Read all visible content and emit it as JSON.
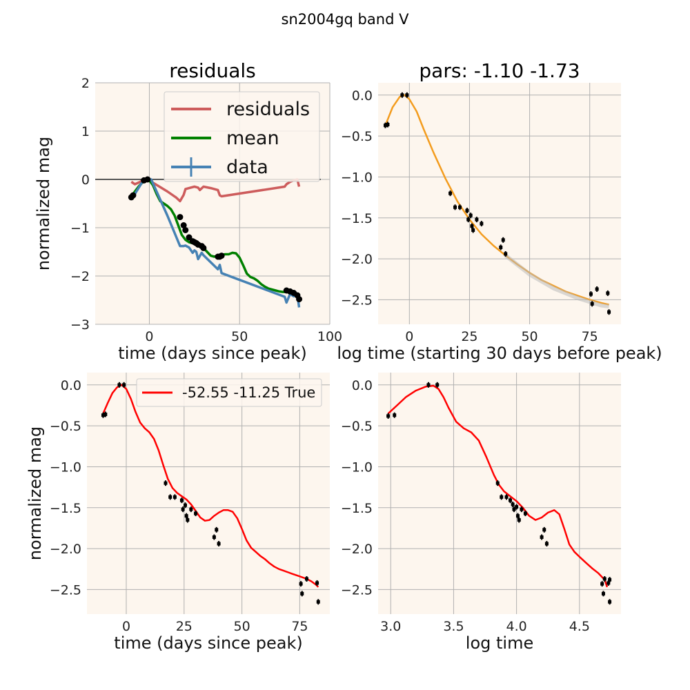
{
  "figure": {
    "title": "sn2004gq band V"
  },
  "chart_data": [
    {
      "id": "residuals",
      "type": "line",
      "title": "residuals",
      "xlabel": "time (days since peak)",
      "ylabel": "normalized mag",
      "xlim": [
        -30,
        100
      ],
      "ylim": [
        -3,
        2
      ],
      "xticks": [
        0,
        50,
        100
      ],
      "yticks": [
        2,
        1,
        0,
        -1,
        -2,
        -3
      ],
      "grid": true,
      "legend": {
        "position": "top-right",
        "entries": [
          "residuals",
          "mean",
          "data"
        ]
      },
      "series": [
        {
          "name": "residuals",
          "color": "#cd5c5c",
          "x": [
            -10,
            -8,
            -5,
            -3,
            -1,
            10,
            15,
            17,
            19,
            20,
            22,
            25,
            27,
            28,
            30,
            34,
            38,
            39,
            40,
            75,
            76,
            78,
            80,
            82,
            83
          ],
          "y": [
            -0.05,
            -0.1,
            -0.05,
            0,
            0,
            -0.25,
            -0.38,
            -0.45,
            -0.32,
            -0.2,
            -0.18,
            -0.15,
            -0.17,
            -0.22,
            -0.15,
            -0.18,
            -0.22,
            -0.33,
            -0.35,
            -0.15,
            -0.1,
            -0.05,
            -0.02,
            0,
            -0.15
          ]
        },
        {
          "name": "mean",
          "color": "#008000",
          "x": [
            -10,
            -8,
            -6,
            -4,
            -2,
            0,
            2,
            4,
            6,
            8,
            10,
            12,
            14,
            16,
            18,
            20,
            22,
            24,
            26,
            28,
            30,
            32,
            34,
            36,
            38,
            40,
            42,
            44,
            46,
            48,
            50,
            52,
            54,
            56,
            58,
            60,
            62,
            64,
            66,
            68,
            70,
            72,
            74,
            76,
            78,
            80,
            82,
            83
          ],
          "y": [
            -0.35,
            -0.25,
            -0.15,
            -0.07,
            -0.02,
            -0.02,
            -0.12,
            -0.3,
            -0.45,
            -0.5,
            -0.55,
            -0.62,
            -0.75,
            -0.95,
            -1.15,
            -1.25,
            -1.3,
            -1.32,
            -1.35,
            -1.38,
            -1.42,
            -1.5,
            -1.58,
            -1.6,
            -1.58,
            -1.56,
            -1.55,
            -1.55,
            -1.52,
            -1.53,
            -1.62,
            -1.78,
            -1.95,
            -2.02,
            -2.05,
            -2.1,
            -2.17,
            -2.22,
            -2.26,
            -2.28,
            -2.3,
            -2.32,
            -2.33,
            -2.33,
            -2.35,
            -2.38,
            -2.43,
            -2.48
          ]
        },
        {
          "name": "data",
          "color": "#4682b4",
          "x": [
            -10,
            -9,
            -3,
            -1,
            1,
            10,
            15,
            17,
            19,
            20,
            22,
            24,
            25,
            26,
            27,
            29,
            30,
            38,
            39,
            40,
            75,
            76,
            78,
            80,
            82,
            83
          ],
          "y": [
            -0.37,
            -0.36,
            0,
            0,
            0,
            -0.75,
            -1.2,
            -1.38,
            -1.38,
            -1.37,
            -1.41,
            -1.52,
            -1.47,
            -1.5,
            -1.65,
            -1.52,
            -1.57,
            -1.86,
            -1.77,
            -1.94,
            -2.43,
            -2.55,
            -2.37,
            -2.42,
            -2.38,
            -2.65
          ]
        },
        {
          "name": "",
          "color": "#000000",
          "type": "scatter",
          "x": [
            -10,
            -9,
            -3,
            -1,
            17,
            19,
            20,
            22,
            24,
            25,
            26,
            27,
            29,
            30,
            38,
            39,
            40,
            76,
            78,
            80,
            82,
            83
          ],
          "y": [
            -0.37,
            -0.33,
            -0.02,
            0,
            -0.78,
            -0.95,
            -1.05,
            -1.2,
            -1.28,
            -1.3,
            -1.32,
            -1.35,
            -1.38,
            -1.42,
            -1.6,
            -1.6,
            -1.58,
            -2.3,
            -2.32,
            -2.35,
            -2.4,
            -2.48
          ]
        }
      ],
      "hline": {
        "y": 0,
        "color": "#555555"
      }
    },
    {
      "id": "pars",
      "type": "line",
      "title": "pars: -1.10 -1.73",
      "xlabel": "log time (starting 30 days before peak)",
      "ylabel": "",
      "xlim": [
        -13,
        88
      ],
      "ylim": [
        -2.8,
        0.15
      ],
      "xticks": [
        0,
        25,
        50,
        75
      ],
      "yticks": [
        0.0,
        -0.5,
        -1.0,
        -1.5,
        -2.0,
        -2.5
      ],
      "grid": true,
      "series": [
        {
          "name": "",
          "color": "#f39c1e",
          "x": [
            -10,
            -7,
            -4,
            -2,
            0,
            3,
            6,
            10,
            15,
            20,
            25,
            30,
            35,
            40,
            45,
            50,
            55,
            60,
            65,
            70,
            75,
            80,
            83
          ],
          "y": [
            -0.37,
            -0.15,
            -0.02,
            0,
            -0.05,
            -0.2,
            -0.42,
            -0.7,
            -1.02,
            -1.3,
            -1.52,
            -1.7,
            -1.84,
            -1.96,
            -2.07,
            -2.17,
            -2.26,
            -2.33,
            -2.4,
            -2.45,
            -2.5,
            -2.54,
            -2.56
          ]
        },
        {
          "name": "",
          "color": "#bbbbbb",
          "x": [
            40,
            50,
            60,
            70,
            80,
            83
          ],
          "y": [
            -1.96,
            -2.19,
            -2.36,
            -2.48,
            -2.57,
            -2.58
          ]
        },
        {
          "name": "",
          "color": "#000000",
          "type": "scatter",
          "x": [
            -10,
            -9,
            -3,
            -1,
            17,
            19,
            21,
            24,
            24.5,
            25.5,
            26,
            26.5,
            28,
            30,
            38,
            39,
            40,
            75.5,
            76,
            78,
            82.5,
            83
          ],
          "y": [
            -0.37,
            -0.36,
            0,
            0,
            -1.2,
            -1.37,
            -1.37,
            -1.41,
            -1.52,
            -1.47,
            -1.6,
            -1.65,
            -1.52,
            -1.57,
            -1.86,
            -1.77,
            -1.94,
            -2.43,
            -2.55,
            -2.37,
            -2.42,
            -2.65
          ]
        }
      ]
    },
    {
      "id": "fit-time",
      "type": "line",
      "title": "",
      "xlabel": "time (days since peak)",
      "ylabel": "normalized mag",
      "xlim": [
        -17,
        88
      ],
      "ylim": [
        -2.8,
        0.15
      ],
      "xticks": [
        0,
        25,
        50,
        75
      ],
      "yticks": [
        0.0,
        -0.5,
        -1.0,
        -1.5,
        -2.0,
        -2.5
      ],
      "grid": true,
      "legend": {
        "position": "top-right",
        "entries": [
          "-52.55 -11.25 True"
        ]
      },
      "series": [
        {
          "name": "-52.55 -11.25 True",
          "color": "#ff0000",
          "x": [
            -10,
            -8,
            -6,
            -4,
            -2,
            0,
            2,
            4,
            6,
            8,
            10,
            12,
            14,
            16,
            18,
            20,
            22,
            24,
            26,
            28,
            30,
            32,
            34,
            36,
            38,
            40,
            42,
            44,
            46,
            48,
            50,
            52,
            54,
            56,
            58,
            60,
            62,
            64,
            66,
            68,
            70,
            72,
            74,
            76,
            78,
            80,
            82,
            83
          ],
          "y": [
            -0.35,
            -0.22,
            -0.1,
            -0.03,
            0,
            -0.05,
            -0.17,
            -0.33,
            -0.46,
            -0.53,
            -0.58,
            -0.66,
            -0.8,
            -0.98,
            -1.15,
            -1.26,
            -1.32,
            -1.36,
            -1.4,
            -1.46,
            -1.54,
            -1.62,
            -1.66,
            -1.65,
            -1.6,
            -1.56,
            -1.53,
            -1.53,
            -1.55,
            -1.63,
            -1.76,
            -1.9,
            -1.99,
            -2.04,
            -2.09,
            -2.13,
            -2.18,
            -2.22,
            -2.25,
            -2.27,
            -2.29,
            -2.31,
            -2.33,
            -2.35,
            -2.37,
            -2.4,
            -2.44,
            -2.47
          ]
        },
        {
          "name": "",
          "color": "#000000",
          "type": "scatter",
          "x": [
            -10,
            -9,
            -3,
            -1,
            17,
            19,
            21,
            24,
            24.5,
            25.5,
            26,
            26.5,
            28,
            30,
            38,
            39,
            40,
            75.5,
            76,
            78,
            82.5,
            83
          ],
          "y": [
            -0.37,
            -0.36,
            0,
            0,
            -1.2,
            -1.37,
            -1.37,
            -1.41,
            -1.52,
            -1.47,
            -1.6,
            -1.65,
            -1.52,
            -1.57,
            -1.86,
            -1.77,
            -1.94,
            -2.43,
            -2.55,
            -2.37,
            -2.42,
            -2.65
          ]
        }
      ]
    },
    {
      "id": "fit-logtime",
      "type": "line",
      "title": "",
      "xlabel": "log time",
      "ylabel": "",
      "xlim": [
        2.9,
        4.83
      ],
      "ylim": [
        -2.8,
        0.15
      ],
      "xticks": [
        3.0,
        3.5,
        4.0,
        4.5
      ],
      "yticks": [
        0.0,
        -0.5,
        -1.0,
        -1.5,
        -2.0,
        -2.5
      ],
      "grid": true,
      "series": [
        {
          "name": "",
          "color": "#ff0000",
          "x": [
            2.98,
            3.05,
            3.12,
            3.2,
            3.28,
            3.34,
            3.38,
            3.42,
            3.46,
            3.52,
            3.58,
            3.64,
            3.7,
            3.76,
            3.82,
            3.86,
            3.9,
            3.95,
            4.0,
            4.05,
            4.1,
            4.15,
            4.2,
            4.25,
            4.3,
            4.34,
            4.38,
            4.42,
            4.46,
            4.5,
            4.55,
            4.6,
            4.65,
            4.7,
            4.72
          ],
          "y": [
            -0.35,
            -0.25,
            -0.15,
            -0.07,
            -0.02,
            -0.01,
            -0.05,
            -0.15,
            -0.28,
            -0.45,
            -0.53,
            -0.58,
            -0.68,
            -0.88,
            -1.1,
            -1.22,
            -1.3,
            -1.36,
            -1.42,
            -1.5,
            -1.6,
            -1.65,
            -1.62,
            -1.56,
            -1.53,
            -1.58,
            -1.76,
            -1.95,
            -2.04,
            -2.1,
            -2.17,
            -2.24,
            -2.3,
            -2.38,
            -2.47
          ]
        },
        {
          "name": "",
          "color": "#000000",
          "type": "scatter",
          "x": [
            2.98,
            3.03,
            3.3,
            3.37,
            3.85,
            3.88,
            3.92,
            3.95,
            3.97,
            3.98,
            4.0,
            4.01,
            4.02,
            4.04,
            4.07,
            4.2,
            4.22,
            4.24,
            4.68,
            4.69,
            4.7,
            4.73,
            4.74,
            4.74
          ],
          "y": [
            -0.38,
            -0.37,
            0,
            0,
            -1.2,
            -1.37,
            -1.37,
            -1.41,
            -1.46,
            -1.52,
            -1.49,
            -1.6,
            -1.65,
            -1.52,
            -1.57,
            -1.86,
            -1.77,
            -1.94,
            -2.43,
            -2.55,
            -2.37,
            -2.42,
            -2.38,
            -2.65
          ]
        }
      ]
    }
  ]
}
